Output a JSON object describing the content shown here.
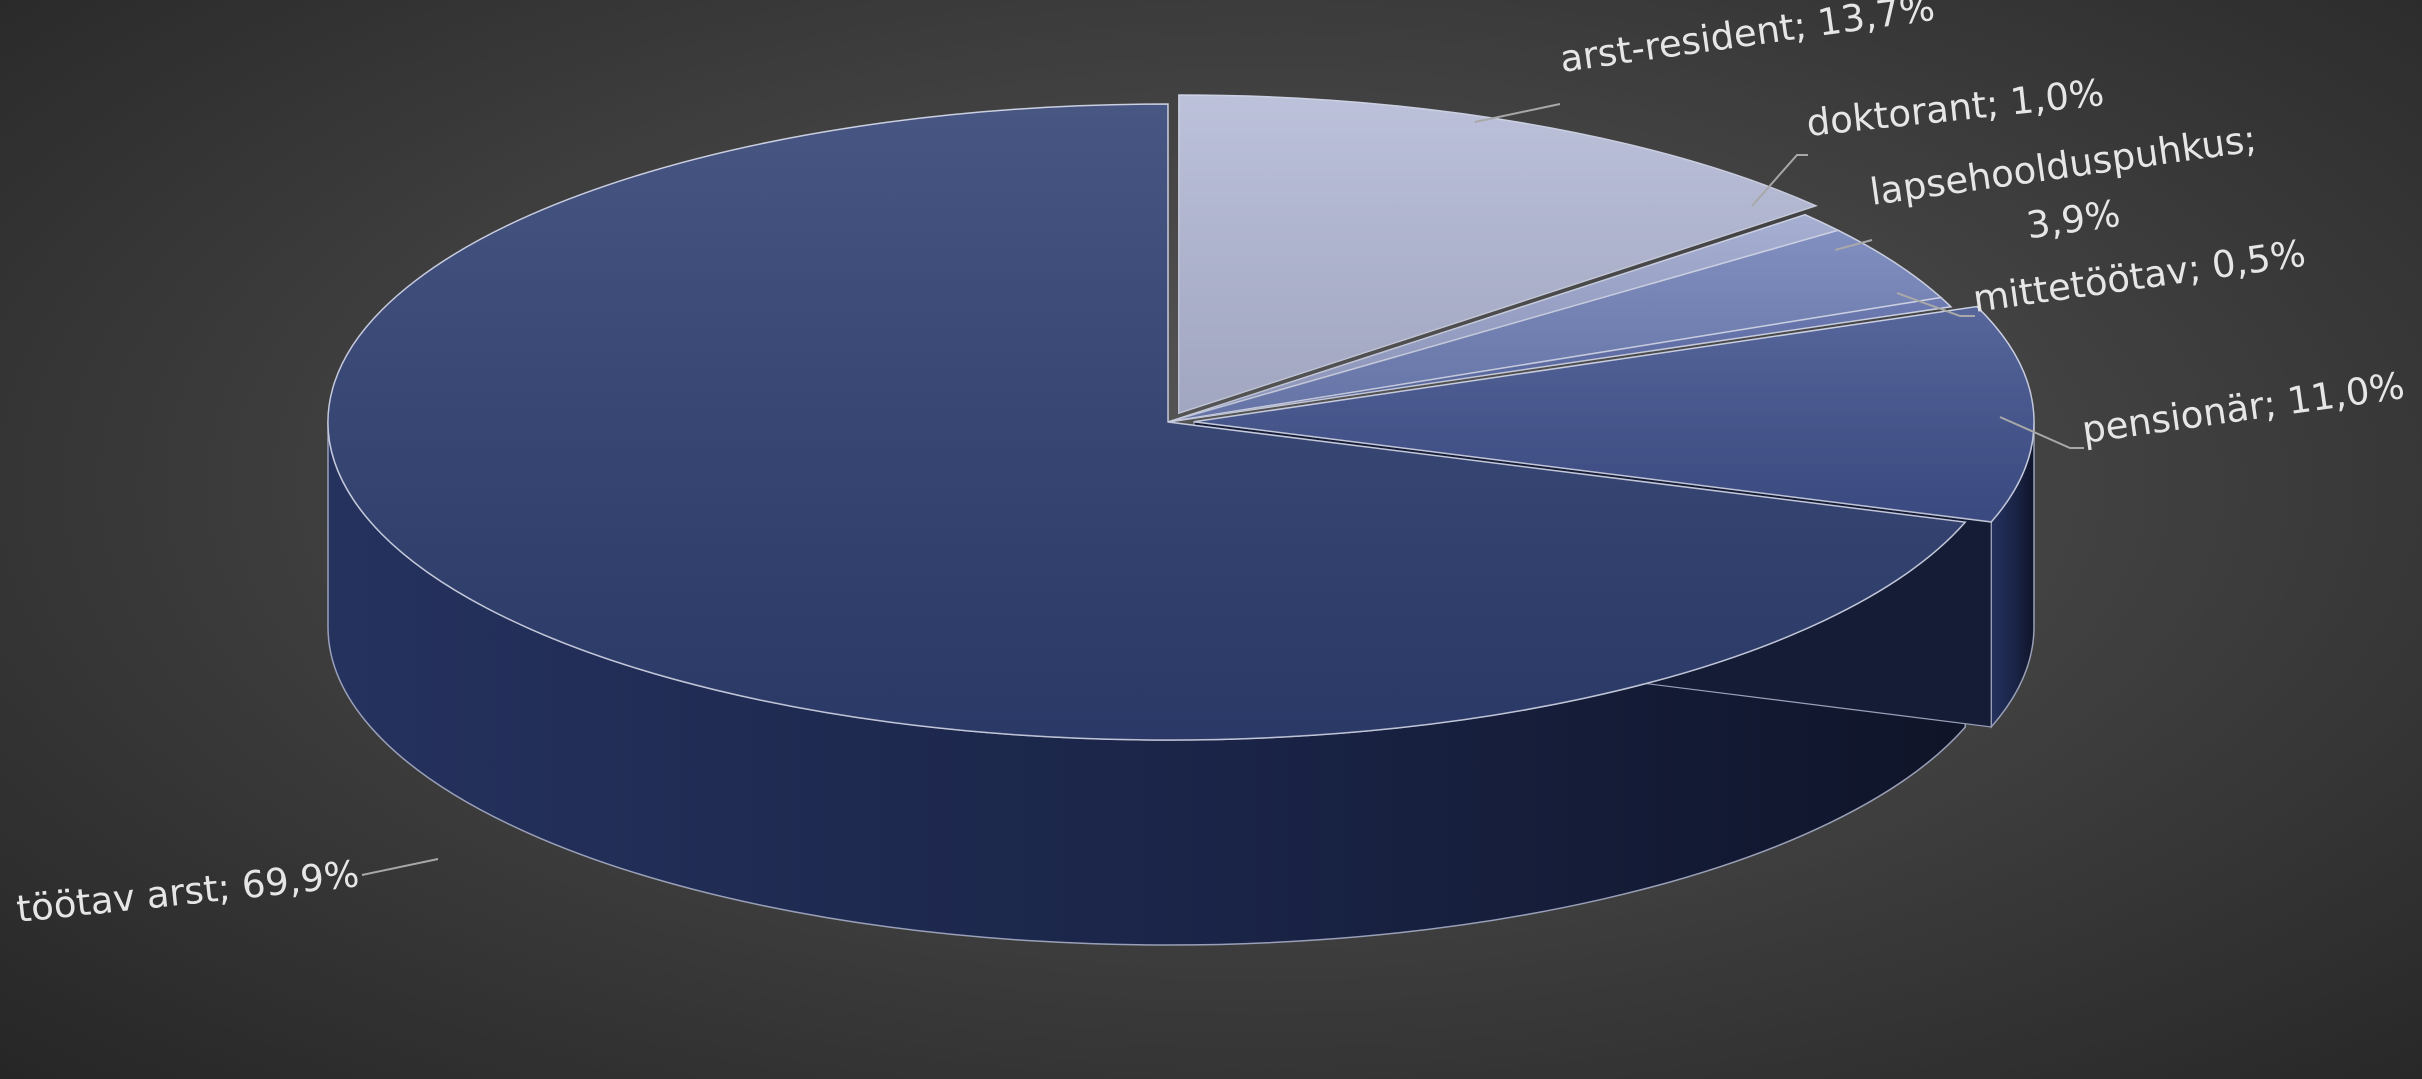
{
  "chart_data": {
    "type": "pie",
    "style": "3d",
    "title": "",
    "slices": [
      {
        "name": "arst-resident",
        "value": 13.7,
        "label": "arst-resident; 13,7%",
        "color": "#b4b9d6"
      },
      {
        "name": "doktorant",
        "value": 1.0,
        "label": "doktorant; 1,0%",
        "color": "#9aa4cc"
      },
      {
        "name": "lapsehoolduspuhkus",
        "value": 3.9,
        "label": "lapsehoolduspuhkus; 3,9%",
        "label_lines": [
          "lapsehoolduspuhkus;",
          "3,9%"
        ],
        "color": "#7080b8"
      },
      {
        "name": "mittetöötav",
        "value": 0.5,
        "label": "mittetöötav; 0,5%",
        "color": "#5a6aa8"
      },
      {
        "name": "pensionär",
        "value": 11.0,
        "label": "pensionär; 11,0%",
        "color": "#40528e"
      },
      {
        "name": "töötav arst",
        "value": 69.9,
        "label": "töötav arst; 69,9%",
        "color": "#2f3f72"
      }
    ],
    "exploded": [
      "arst-resident",
      "pensionär"
    ],
    "legend": "none",
    "background": "#3c3c3c"
  }
}
